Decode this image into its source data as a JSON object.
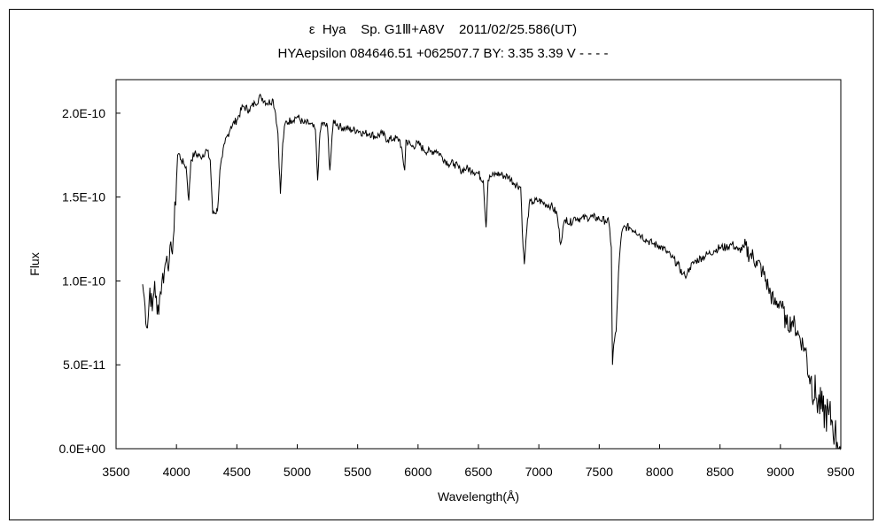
{
  "chart_data": {
    "type": "line",
    "title": "ε  Hya    Sp. G1Ⅲ+A8V    2011/02/25.586(UT)",
    "subtitle": "HYAepsilon 084646.51 +062507.7 BY: 3.35 3.39 V - - - -",
    "xlabel": "Wavelength(Å)",
    "ylabel": "Flux",
    "xlim": [
      3500,
      9500
    ],
    "ylim": [
      0,
      2.2e-10
    ],
    "x_ticks": [
      3500,
      4000,
      4500,
      5000,
      5500,
      6000,
      6500,
      7000,
      7500,
      8000,
      8500,
      9000,
      9500
    ],
    "x_tick_labels": [
      "3500",
      "4000",
      "4500",
      "5000",
      "5500",
      "6000",
      "6500",
      "7000",
      "7500",
      "8000",
      "8500",
      "9000",
      "9500"
    ],
    "y_ticks": [
      0,
      5e-11,
      1e-10,
      1.5e-10,
      2e-10
    ],
    "y_tick_labels": [
      "0.0E+00",
      "5.0E-11",
      "1.0E-10",
      "1.5E-10",
      "2.0E-10"
    ],
    "grid": false,
    "legend": "none",
    "line_color": "#000000",
    "series": [
      {
        "x": [
          3720,
          3740,
          3760,
          3780,
          3800,
          3820,
          3840,
          3860,
          3880,
          3900,
          3920,
          3940,
          3960,
          3980,
          4000,
          4010,
          4020,
          4040,
          4060,
          4080,
          4102,
          4120,
          4150,
          4200,
          4250,
          4280,
          4300,
          4340,
          4360,
          4380,
          4400,
          4450,
          4500,
          4550,
          4600,
          4650,
          4700,
          4750,
          4800,
          4820,
          4840,
          4861,
          4880,
          4900,
          4950,
          5000,
          5050,
          5100,
          5150,
          5169,
          5183,
          5200,
          5250,
          5270,
          5300,
          5350,
          5400,
          5450,
          5500,
          5550,
          5600,
          5650,
          5700,
          5750,
          5800,
          5850,
          5890,
          5900,
          5950,
          6000,
          6050,
          6100,
          6150,
          6200,
          6250,
          6300,
          6350,
          6400,
          6450,
          6500,
          6540,
          6563,
          6580,
          6600,
          6650,
          6700,
          6750,
          6800,
          6850,
          6870,
          6880,
          6900,
          6920,
          6950,
          7000,
          7050,
          7100,
          7150,
          7180,
          7200,
          7230,
          7250,
          7300,
          7350,
          7400,
          7450,
          7500,
          7550,
          7580,
          7600,
          7610,
          7620,
          7640,
          7660,
          7680,
          7700,
          7720,
          7750,
          7800,
          7850,
          7900,
          7950,
          8000,
          8050,
          8100,
          8150,
          8190,
          8210,
          8230,
          8250,
          8300,
          8350,
          8400,
          8450,
          8500,
          8550,
          8600,
          8650,
          8700,
          8750,
          8800,
          8850,
          8900,
          8950,
          9000,
          9050,
          9100,
          9150,
          9200,
          9250,
          9300,
          9350,
          9400,
          9430,
          9450,
          9470,
          9490,
          9500
        ],
        "y": [
          9.8e-11,
          8.5e-11,
          7.2e-11,
          9.6e-11,
          8.2e-11,
          1e-10,
          8e-11,
          9e-11,
          1e-10,
          1.06e-10,
          1.15e-10,
          1.12e-10,
          1.18e-10,
          1.3e-10,
          1.6e-10,
          1.75e-10,
          1.76e-10,
          1.72e-10,
          1.7e-10,
          1.68e-10,
          1.48e-10,
          1.72e-10,
          1.76e-10,
          1.74e-10,
          1.78e-10,
          1.72e-10,
          1.4e-10,
          1.42e-10,
          1.66e-10,
          1.74e-10,
          1.82e-10,
          1.92e-10,
          1.96e-10,
          2.04e-10,
          2.02e-10,
          2.06e-10,
          2.1e-10,
          2.06e-10,
          2.08e-10,
          2e-10,
          1.88e-10,
          1.52e-10,
          1.82e-10,
          1.94e-10,
          1.96e-10,
          1.98e-10,
          1.94e-10,
          1.94e-10,
          1.9e-10,
          1.6e-10,
          1.82e-10,
          1.94e-10,
          1.92e-10,
          1.66e-10,
          1.96e-10,
          1.92e-10,
          1.91e-10,
          1.9e-10,
          1.9e-10,
          1.88e-10,
          1.88e-10,
          1.86e-10,
          1.88e-10,
          1.84e-10,
          1.85e-10,
          1.84e-10,
          1.66e-10,
          1.84e-10,
          1.8e-10,
          1.82e-10,
          1.78e-10,
          1.77e-10,
          1.78e-10,
          1.74e-10,
          1.7e-10,
          1.7e-10,
          1.66e-10,
          1.67e-10,
          1.66e-10,
          1.64e-10,
          1.6e-10,
          1.32e-10,
          1.6e-10,
          1.62e-10,
          1.64e-10,
          1.63e-10,
          1.62e-10,
          1.58e-10,
          1.56e-10,
          1.2e-10,
          1.1e-10,
          1.3e-10,
          1.46e-10,
          1.47e-10,
          1.48e-10,
          1.46e-10,
          1.45e-10,
          1.4e-10,
          1.22e-10,
          1.32e-10,
          1.38e-10,
          1.34e-10,
          1.38e-10,
          1.37e-10,
          1.38e-10,
          1.38e-10,
          1.37e-10,
          1.36e-10,
          1.35e-10,
          1.2e-10,
          5e-11,
          6.2e-11,
          7e-11,
          1.05e-10,
          1.25e-10,
          1.32e-10,
          1.32e-10,
          1.32e-10,
          1.3e-10,
          1.27e-10,
          1.24e-10,
          1.22e-10,
          1.21e-10,
          1.18e-10,
          1.14e-10,
          1.1e-10,
          1.04e-10,
          1.03e-10,
          1.05e-10,
          1.08e-10,
          1.12e-10,
          1.14e-10,
          1.16e-10,
          1.18e-10,
          1.2e-10,
          1.2e-10,
          1.22e-10,
          1.18e-10,
          1.2e-10,
          1.16e-10,
          1.12e-10,
          1.06e-10,
          9.6e-11,
          8.6e-11,
          8.8e-11,
          7.4e-11,
          7.6e-11,
          6.8e-11,
          6e-11,
          4.2e-11,
          3e-11,
          2.2e-11,
          2e-11,
          1.6e-11,
          1e-11,
          4e-12,
          1e-12,
          2e-12
        ]
      }
    ]
  }
}
